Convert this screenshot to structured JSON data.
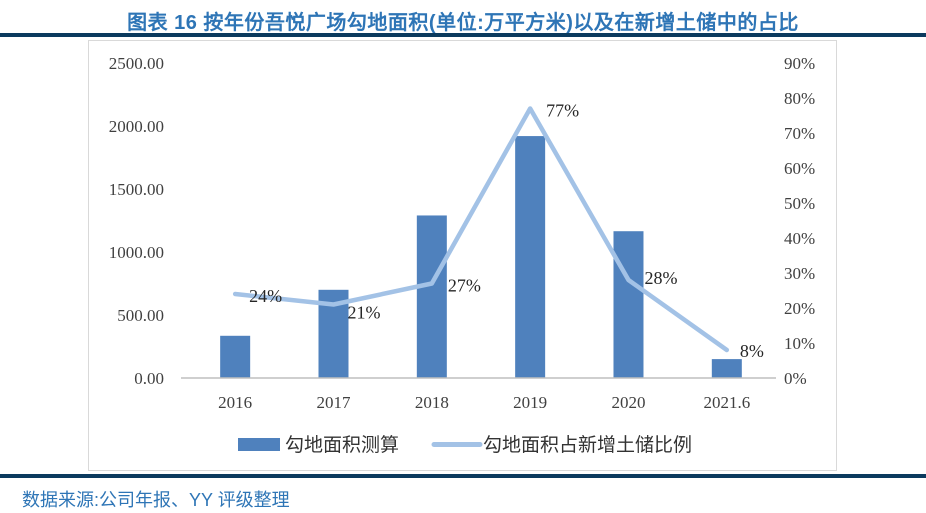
{
  "title": "图表 16 按年份吾悦广场勾地面积(单位:万平方米)以及在新增土储中的占比",
  "source": "数据来源:公司年报、YY 评级整理",
  "colors": {
    "title_blue": "#2E75B6",
    "divider_navy": "#0B3A5E",
    "bar_fill": "#4F81BD",
    "line_stroke": "#A3C2E6",
    "axis_line_gray": "#BFBFBF",
    "tick_text_gray": "#404040",
    "data_label_dark": "#262626",
    "box_border_gray": "#D9D9D9"
  },
  "chart_data": {
    "type": "bar",
    "subtype": "combo-bar-line-dual-axis",
    "categories": [
      "2016",
      "2017",
      "2018",
      "2019",
      "2020",
      "2021.6"
    ],
    "series": [
      {
        "name": "勾地面积测算",
        "type": "bar",
        "axis": "left",
        "values": [
          335,
          700,
          1290,
          1920,
          1165,
          150
        ]
      },
      {
        "name": "勾地面积占新增土储比例",
        "type": "line",
        "axis": "right",
        "values": [
          24,
          21,
          27,
          77,
          28,
          8
        ],
        "point_labels": [
          "24%",
          "21%",
          "27%",
          "77%",
          "28%",
          "8%"
        ]
      }
    ],
    "left_axis": {
      "min": 0,
      "max": 2500,
      "step": 500,
      "tick_labels_top_to_bottom": [
        "2500.00",
        "2000.00",
        "1500.00",
        "1000.00",
        "500.00",
        "0.00"
      ]
    },
    "right_axis": {
      "min": 0,
      "max": 90,
      "step": 10,
      "tick_labels_top_to_bottom": [
        "90%",
        "80%",
        "70%",
        "60%",
        "50%",
        "40%",
        "30%",
        "20%",
        "10%",
        "0%"
      ]
    },
    "grid": false,
    "legend_position": "bottom"
  }
}
